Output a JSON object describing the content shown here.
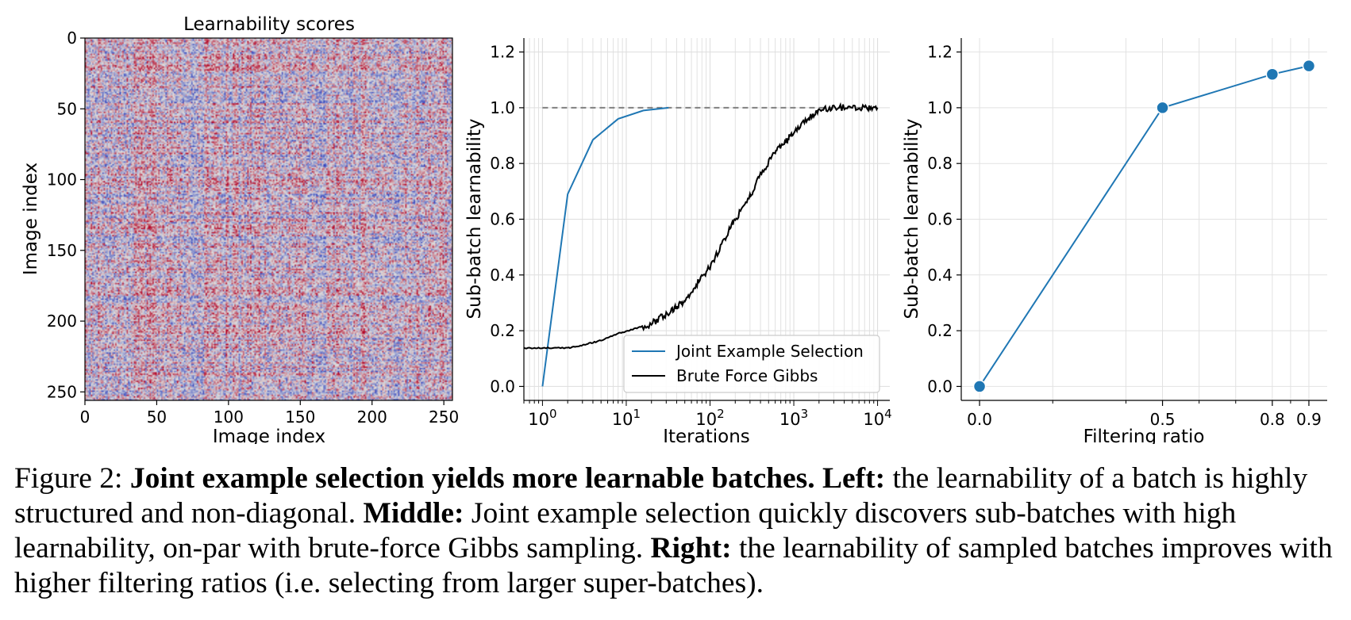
{
  "chart_data": [
    {
      "type": "heatmap",
      "title": "Learnability scores",
      "xlabel": "Image index",
      "ylabel": "Image index",
      "size": 256,
      "xticks": [
        0,
        50,
        100,
        150,
        200,
        250
      ],
      "yticks": [
        0,
        50,
        100,
        150,
        200,
        250
      ],
      "colormap": "coolwarm",
      "colors": {
        "low": "#3b4cc0",
        "mid": "#dddddd",
        "high": "#b40426"
      }
    },
    {
      "type": "line",
      "title": "",
      "xlabel": "Iterations",
      "ylabel": "Sub-batch learnability",
      "xscale": "log",
      "xlim": [
        0.6,
        14000
      ],
      "ylim": [
        -0.05,
        1.25
      ],
      "xticks": [
        1,
        10,
        100,
        1000,
        10000
      ],
      "xtick_labels": [
        {
          "base": "10",
          "exp": "0"
        },
        {
          "base": "10",
          "exp": "1"
        },
        {
          "base": "10",
          "exp": "2"
        },
        {
          "base": "10",
          "exp": "3"
        },
        {
          "base": "10",
          "exp": "4"
        }
      ],
      "yticks": [
        0.0,
        0.2,
        0.4,
        0.6,
        0.8,
        1.0,
        1.2
      ],
      "ytick_labels": [
        "0.0",
        "0.2",
        "0.4",
        "0.6",
        "0.8",
        "1.0",
        "1.2"
      ],
      "grid": true,
      "legend_position": "lower-right",
      "reference_line": {
        "y": 1.0,
        "style": "dashed",
        "color": "#808080"
      },
      "series": [
        {
          "name": "Joint Example Selection",
          "color": "#1f77b4",
          "x": [
            1,
            2,
            4,
            8,
            16,
            32
          ],
          "y": [
            0.0,
            0.69,
            0.885,
            0.96,
            0.99,
            1.0
          ]
        },
        {
          "name": "Brute Force Gibbs",
          "color": "#000000",
          "x": [
            0.6,
            1,
            2,
            3,
            5,
            8,
            12,
            20,
            30,
            40,
            50,
            70,
            100,
            150,
            200,
            300,
            400,
            600,
            800,
            1000,
            1500,
            2000,
            3000,
            5000,
            7000,
            10000
          ],
          "y": [
            0.138,
            0.138,
            0.138,
            0.148,
            0.165,
            0.19,
            0.205,
            0.225,
            0.26,
            0.285,
            0.31,
            0.37,
            0.43,
            0.53,
            0.6,
            0.68,
            0.76,
            0.84,
            0.88,
            0.91,
            0.96,
            0.99,
            1.0,
            1.0,
            1.0,
            1.0
          ]
        }
      ]
    },
    {
      "type": "line",
      "title": "",
      "xlabel": "Filtering ratio",
      "ylabel": "Sub-batch learnability",
      "ylim": [
        -0.05,
        1.25
      ],
      "yticks": [
        0.0,
        0.2,
        0.4,
        0.6,
        0.8,
        1.0,
        1.2
      ],
      "ytick_labels": [
        "0.0",
        "0.2",
        "0.4",
        "0.6",
        "0.8",
        "1.0",
        "1.2"
      ],
      "categories": [
        "0.0",
        "0.5",
        "0.8",
        "0.9"
      ],
      "grid": true,
      "series": [
        {
          "color": "#1f77b4",
          "marker": "circle",
          "values": [
            0.0,
            1.0,
            1.12,
            1.15
          ]
        }
      ]
    }
  ],
  "caption": {
    "label": "Figure 2:",
    "headline": "Joint example selection yields more learnable batches.",
    "left_label": "Left:",
    "left_text": "the learnability of a batch is highly structured and non-diagonal.",
    "middle_label": "Middle:",
    "middle_text": "Joint example selection quickly discovers sub-batches with high learnability, on-par with brute-force Gibbs sampling.",
    "right_label": "Right:",
    "right_text": "the learnability of sampled batches improves with higher filtering ratios (i.e. selecting from larger super-batches)."
  }
}
